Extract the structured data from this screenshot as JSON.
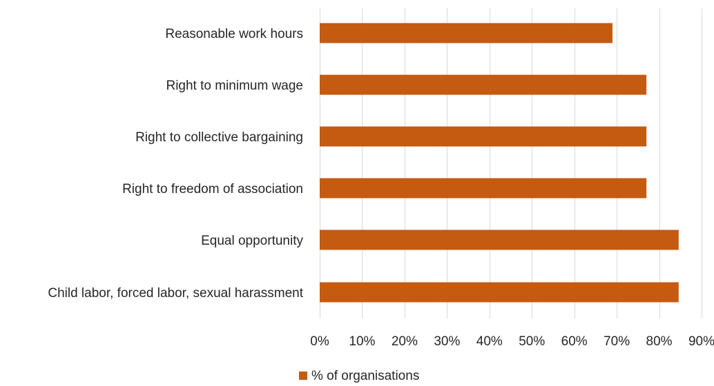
{
  "chart_data": {
    "type": "bar",
    "orientation": "horizontal",
    "categories": [
      "Reasonable work hours",
      "Right to minimum wage",
      "Right to collective bargaining",
      "Right to freedom of association",
      "Equal opportunity",
      "Child labor, forced labor, sexual harassment"
    ],
    "series": [
      {
        "name": "% of organisations",
        "values": [
          0.69,
          0.77,
          0.77,
          0.77,
          0.846,
          0.846
        ]
      }
    ],
    "xlim": [
      0,
      0.9
    ],
    "xticks": [
      "0%",
      "10%",
      "20%",
      "30%",
      "40%",
      "50%",
      "60%",
      "70%",
      "80%",
      "90%"
    ],
    "grid": "vertical",
    "legend_position": "bottom",
    "colors": {
      "bar": "#C55A11",
      "grid": "#D9D9D9",
      "text": "#262626"
    }
  }
}
